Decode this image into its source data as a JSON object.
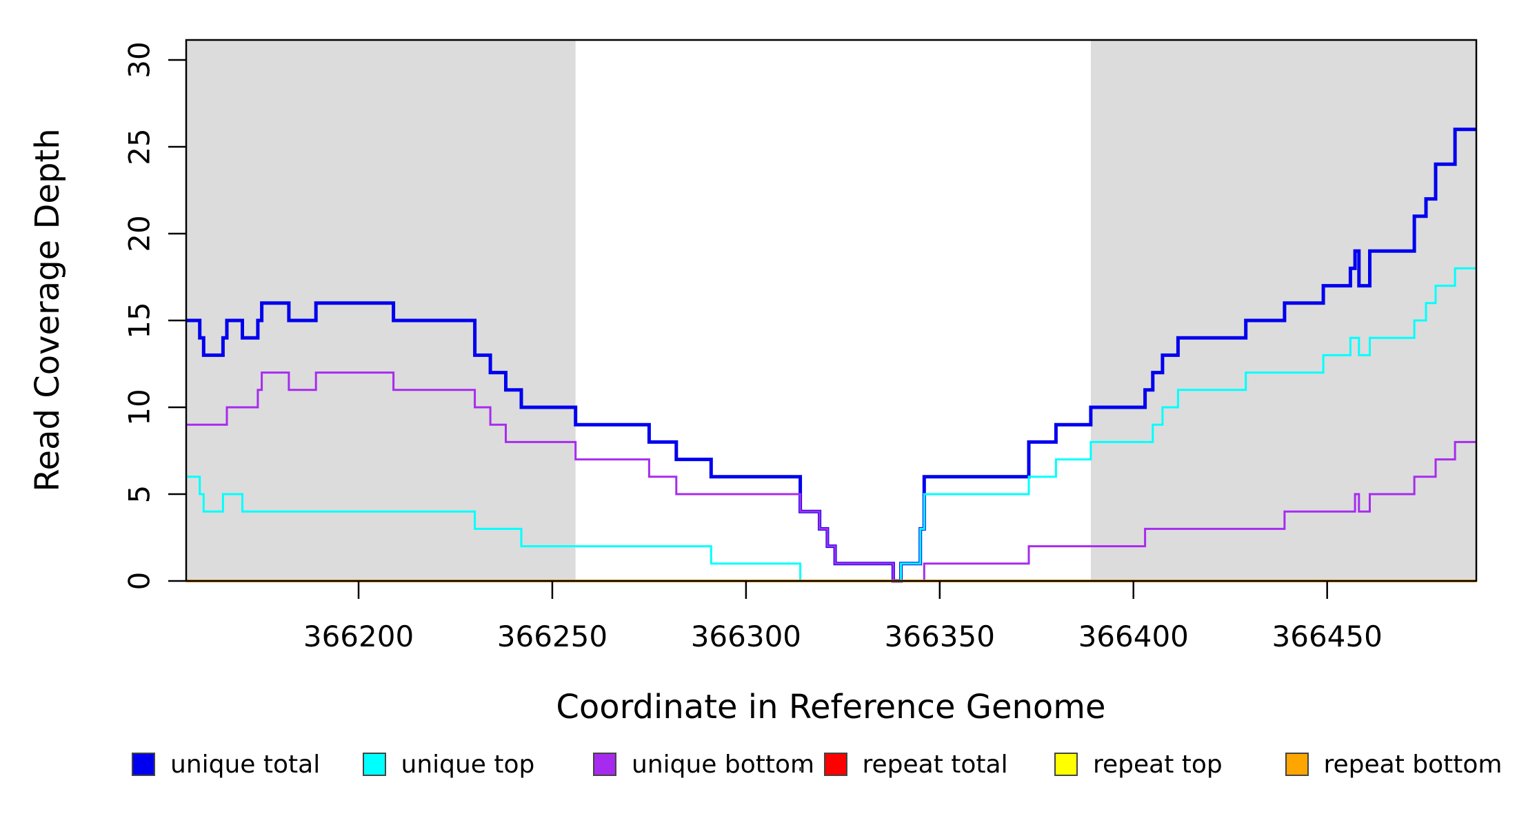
{
  "chart_data": {
    "type": "line",
    "subtype": "step",
    "xlabel": "Coordinate in Reference Genome",
    "ylabel": "Read Coverage Depth",
    "xlim": [
      366155.5,
      366488.5
    ],
    "ylim": [
      0,
      31.15
    ],
    "xticks": [
      366200,
      366250,
      366300,
      366350,
      366400,
      366450
    ],
    "yticks": [
      0,
      5,
      10,
      15,
      20,
      25,
      30
    ],
    "grid": false,
    "shaded_regions": [
      {
        "x0": 366155.5,
        "x1": 366256,
        "color": "#DCDCDC"
      },
      {
        "x0": 366389,
        "x1": 366488.5,
        "color": "#DCDCDC"
      }
    ],
    "series": [
      {
        "name": "unique total",
        "color": "#0000EE",
        "width": 5,
        "steps": [
          [
            366155.5,
            15
          ],
          [
            366159,
            14
          ],
          [
            366160,
            13
          ],
          [
            366165,
            14
          ],
          [
            366166,
            15
          ],
          [
            366170,
            14
          ],
          [
            366174,
            15
          ],
          [
            366175,
            16
          ],
          [
            366182,
            15
          ],
          [
            366189,
            16
          ],
          [
            366209,
            15
          ],
          [
            366230,
            13
          ],
          [
            366234,
            12
          ],
          [
            366238,
            11
          ],
          [
            366242,
            10
          ],
          [
            366256,
            9
          ],
          [
            366275,
            8
          ],
          [
            366282,
            7
          ],
          [
            366291,
            6
          ],
          [
            366314,
            4
          ],
          [
            366319,
            3
          ],
          [
            366321,
            2
          ],
          [
            366323,
            1
          ],
          [
            366338,
            0
          ],
          [
            366340,
            1
          ],
          [
            366345,
            3
          ],
          [
            366346,
            6
          ],
          [
            366373,
            8
          ],
          [
            366380,
            9
          ],
          [
            366389,
            10
          ],
          [
            366403,
            11
          ],
          [
            366405,
            12
          ],
          [
            366407.5,
            13
          ],
          [
            366411.5,
            14
          ],
          [
            366429,
            15
          ],
          [
            366439,
            16
          ],
          [
            366449,
            17
          ],
          [
            366456,
            18
          ],
          [
            366457.2,
            19
          ],
          [
            366458.2,
            17
          ],
          [
            366461,
            19
          ],
          [
            366472.5,
            21
          ],
          [
            366475.5,
            22
          ],
          [
            366478,
            24
          ],
          [
            366483,
            26
          ]
        ]
      },
      {
        "name": "unique top",
        "color": "#00FFFF",
        "width": 3,
        "steps": [
          [
            366155.5,
            6
          ],
          [
            366159,
            5
          ],
          [
            366160,
            4
          ],
          [
            366165,
            5
          ],
          [
            366170,
            4
          ],
          [
            366230,
            3
          ],
          [
            366242,
            2
          ],
          [
            366291,
            1
          ],
          [
            366314,
            0
          ],
          [
            366340,
            1
          ],
          [
            366345,
            3
          ],
          [
            366346,
            5
          ],
          [
            366373,
            6
          ],
          [
            366380,
            7
          ],
          [
            366389,
            8
          ],
          [
            366405,
            9
          ],
          [
            366407.5,
            10
          ],
          [
            366411.5,
            11
          ],
          [
            366429,
            12
          ],
          [
            366449,
            13
          ],
          [
            366456,
            14
          ],
          [
            366458.2,
            13
          ],
          [
            366461,
            14
          ],
          [
            366472.5,
            15
          ],
          [
            366475.5,
            16
          ],
          [
            366478,
            17
          ],
          [
            366483,
            18
          ]
        ]
      },
      {
        "name": "unique bottom",
        "color": "#A72BEE",
        "width": 3,
        "steps": [
          [
            366155.5,
            9
          ],
          [
            366166,
            10
          ],
          [
            366174,
            11
          ],
          [
            366175,
            12
          ],
          [
            366182,
            11
          ],
          [
            366189,
            12
          ],
          [
            366209,
            11
          ],
          [
            366230,
            10
          ],
          [
            366234,
            9
          ],
          [
            366238,
            8
          ],
          [
            366256,
            7
          ],
          [
            366275,
            6
          ],
          [
            366282,
            5
          ],
          [
            366314,
            4
          ],
          [
            366319,
            3
          ],
          [
            366321,
            2
          ],
          [
            366323,
            1
          ],
          [
            366338,
            0
          ],
          [
            366346,
            1
          ],
          [
            366373,
            2
          ],
          [
            366403,
            3
          ],
          [
            366439,
            4
          ],
          [
            366457.2,
            5
          ],
          [
            366458.2,
            4
          ],
          [
            366461,
            5
          ],
          [
            366472.5,
            6
          ],
          [
            366478,
            7
          ],
          [
            366483,
            8
          ]
        ]
      },
      {
        "name": "repeat total",
        "color": "#FF0000",
        "width": 3,
        "steps": [
          [
            366155.5,
            0
          ]
        ]
      },
      {
        "name": "repeat top",
        "color": "#FFFF00",
        "width": 3,
        "steps": [
          [
            366155.5,
            0
          ]
        ]
      },
      {
        "name": "repeat bottom",
        "color": "#FFA500",
        "width": 4,
        "steps": [
          [
            366155.5,
            0
          ]
        ]
      }
    ],
    "legend": {
      "position": "bottom",
      "entries": [
        {
          "label": "unique total",
          "color": "#0000EE"
        },
        {
          "label": "unique top",
          "color": "#00FFFF"
        },
        {
          "label": "unique bottom",
          "color": "#A72BEE"
        },
        {
          "label": "repeat total",
          "color": "#FF0000"
        },
        {
          "label": "repeat top",
          "color": "#FFFF00"
        },
        {
          "label": "repeat bottom",
          "color": "#FFA500"
        }
      ]
    }
  },
  "labels": {
    "xlabel": "Coordinate in Reference Genome",
    "ylabel": "Read Coverage Depth"
  }
}
